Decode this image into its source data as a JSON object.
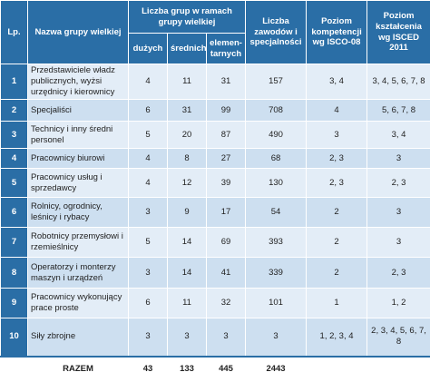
{
  "header": {
    "lp": "Lp.",
    "name": "Nazwa grupy wielkiej",
    "groups": "Liczba grup w ramach grupy wielkiej",
    "large": "dużych",
    "medium": "średnich",
    "elementary": "elemen-tarnych",
    "occupations": "Liczba zawodów i specjalności",
    "isco": "Poziom kompetencji wg ISCO-08",
    "isced": "Poziom kształcenia wg ISCED 2011"
  },
  "table": {
    "rows": [
      [
        "1",
        "Przedstawiciele władz publicznych, wyżsi urzędnicy i kierownicy",
        "4",
        "11",
        "31",
        "157",
        "3, 4",
        "3, 4, 5, 6, 7, 8"
      ],
      [
        "2",
        "Specjaliści",
        "6",
        "31",
        "99",
        "708",
        "4",
        "5, 6, 7, 8"
      ],
      [
        "3",
        "Technicy i inny średni personel",
        "5",
        "20",
        "87",
        "490",
        "3",
        "3, 4"
      ],
      [
        "4",
        "Pracownicy biurowi",
        "4",
        "8",
        "27",
        "68",
        "2, 3",
        "3"
      ],
      [
        "5",
        "Pracownicy usług i sprzedawcy",
        "4",
        "12",
        "39",
        "130",
        "2, 3",
        "2, 3"
      ],
      [
        "6",
        "Rolnicy, ogrodnicy, leśnicy i rybacy",
        "3",
        "9",
        "17",
        "54",
        "2",
        "3"
      ],
      [
        "7",
        "Robotnicy przemysłowi i rzemieślnicy",
        "5",
        "14",
        "69",
        "393",
        "2",
        "3"
      ],
      [
        "8",
        "Operatorzy i monterzy maszyn i urządzeń",
        "3",
        "14",
        "41",
        "339",
        "2",
        "2, 3"
      ],
      [
        "9",
        "Pracownicy wykonujący prace proste",
        "6",
        "11",
        "32",
        "101",
        "1",
        "1, 2"
      ],
      [
        "10",
        "Siły zbrojne",
        "3",
        "3",
        "3",
        "3",
        "1, 2, 3, 4",
        "2, 3, 4, 5, 6, 7, 8"
      ]
    ],
    "total": [
      "RAZEM",
      "43",
      "133",
      "445",
      "2443"
    ]
  }
}
